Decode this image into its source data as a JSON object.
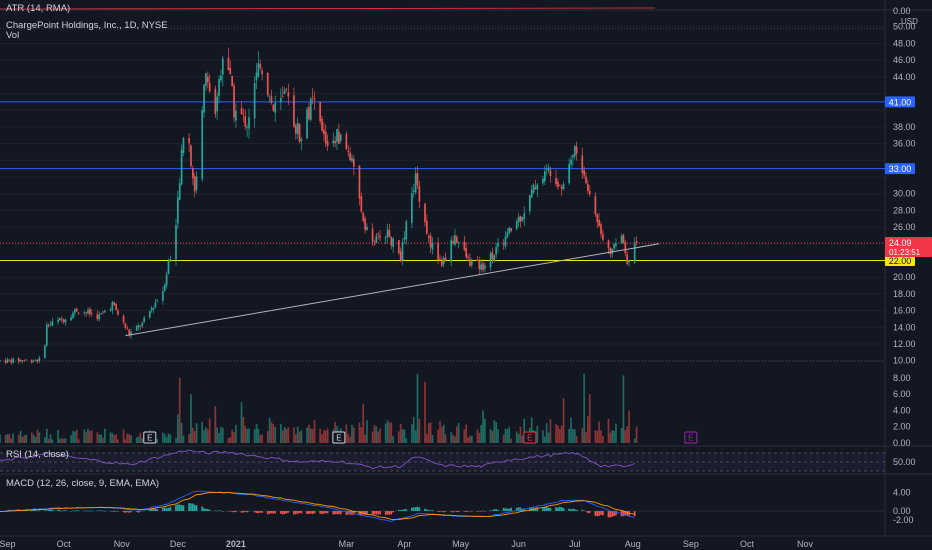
{
  "header": {
    "atr_label": "ATR (14, RMA)",
    "symbol_label": "ChargePoint Holdings, Inc., 1D, NYSE",
    "vol_label": "Vol",
    "rsi_label": "RSI (14, close)",
    "macd_label": "MACD (12, 26, close, 9, EMA, EMA)",
    "currency": "USD"
  },
  "chart_data": {
    "type": "candlestick",
    "price_axis_ticks": [
      "10.00",
      "12.00",
      "14.00",
      "16.00",
      "18.00",
      "20.00",
      "22.00",
      "24.00",
      "26.00",
      "28.00",
      "30.00",
      "32.00",
      "34.00",
      "36.00",
      "38.00",
      "40.00",
      "42.00",
      "44.00",
      "46.00",
      "48.00",
      "50.00"
    ],
    "volume_axis_ticks": [
      "0.00",
      "2.00",
      "4.00",
      "6.00",
      "8.00"
    ],
    "atr_axis_ticks": [
      "0.00"
    ],
    "rsi_axis_ticks": [
      "50.00"
    ],
    "macd_axis_ticks": [
      "4.00",
      "0.00",
      "-2.00"
    ],
    "x_axis_labels": [
      "Sep",
      "Oct",
      "Nov",
      "Dec",
      "2021",
      "Mar",
      "Apr",
      "May",
      "Jun",
      "Jul",
      "Aug",
      "Sep",
      "Oct",
      "Nov"
    ],
    "horizontal_levels": [
      {
        "value": 41.0,
        "label": "41.00",
        "color": "#2962ff"
      },
      {
        "value": 33.0,
        "label": "33.00",
        "color": "#2962ff"
      },
      {
        "value": 22.0,
        "label": "22.00",
        "color": "#f5e50b"
      }
    ],
    "last_price": {
      "value": 24.09,
      "label": "24.09",
      "countdown": "01:23:51",
      "color": "#f23645"
    },
    "trendline": {
      "start": {
        "date": "2020-11-03",
        "price": 13.0
      },
      "end": {
        "date": "2021-08-15",
        "price": 24.0
      }
    },
    "earnings_markers": [
      {
        "date": "2020-11-16",
        "label": "E",
        "color": "#d1d4dc"
      },
      {
        "date": "2021-02-25",
        "label": "E",
        "color": "#d1d4dc"
      },
      {
        "date": "2021-06-07",
        "label": "E",
        "color": "#f23645"
      },
      {
        "date": "2021-09-01",
        "label": "E",
        "color": "#9c27b0"
      }
    ],
    "price_path": [
      [
        "2020-08-28",
        10.0
      ],
      [
        "2020-09-20",
        10.1
      ],
      [
        "2020-09-22",
        14.2
      ],
      [
        "2020-10-01",
        15.0
      ],
      [
        "2020-10-08",
        16.1
      ],
      [
        "2020-10-20",
        15.3
      ],
      [
        "2020-10-27",
        16.8
      ],
      [
        "2020-11-05",
        13.2
      ],
      [
        "2020-11-12",
        14.4
      ],
      [
        "2020-11-23",
        18.5
      ],
      [
        "2020-11-30",
        26.0
      ],
      [
        "2020-12-05",
        40.0
      ],
      [
        "2020-12-10",
        30.0
      ],
      [
        "2020-12-16",
        45.0
      ],
      [
        "2020-12-20",
        38.5
      ],
      [
        "2020-12-26",
        48.5
      ],
      [
        "2020-12-31",
        40.0
      ],
      [
        "2021-01-07",
        38.5
      ],
      [
        "2021-01-14",
        46.0
      ],
      [
        "2021-01-21",
        40.0
      ],
      [
        "2021-01-28",
        41.5
      ],
      [
        "2021-02-04",
        37.0
      ],
      [
        "2021-02-11",
        41.0
      ],
      [
        "2021-02-18",
        36.0
      ],
      [
        "2021-02-25",
        37.0
      ],
      [
        "2021-03-03",
        34.5
      ],
      [
        "2021-03-10",
        27.0
      ],
      [
        "2021-03-15",
        24.0
      ],
      [
        "2021-03-22",
        25.5
      ],
      [
        "2021-03-30",
        22.5
      ],
      [
        "2021-04-07",
        32.0
      ],
      [
        "2021-04-14",
        24.5
      ],
      [
        "2021-04-21",
        21.5
      ],
      [
        "2021-04-28",
        25.0
      ],
      [
        "2021-05-05",
        22.0
      ],
      [
        "2021-05-12",
        21.2
      ],
      [
        "2021-05-19",
        23.0
      ],
      [
        "2021-05-26",
        25.0
      ],
      [
        "2021-06-04",
        28.0
      ],
      [
        "2021-06-11",
        31.5
      ],
      [
        "2021-06-18",
        33.0
      ],
      [
        "2021-06-24",
        31.0
      ],
      [
        "2021-07-01",
        35.5
      ],
      [
        "2021-07-08",
        30.5
      ],
      [
        "2021-07-15",
        25.5
      ],
      [
        "2021-07-21",
        23.0
      ],
      [
        "2021-07-26",
        25.0
      ],
      [
        "2021-07-29",
        22.2
      ],
      [
        "2021-08-03",
        24.09
      ]
    ],
    "volume_spikes": [
      [
        "2020-12-01",
        3.5
      ],
      [
        "2020-12-02",
        8.0
      ],
      [
        "2020-12-08",
        6.0
      ],
      [
        "2020-12-21",
        4.5
      ],
      [
        "2021-01-04",
        5.0
      ],
      [
        "2021-03-10",
        4.8
      ],
      [
        "2021-04-08",
        8.5
      ],
      [
        "2021-04-12",
        7.5
      ],
      [
        "2021-05-13",
        4.0
      ],
      [
        "2021-06-25",
        5.5
      ],
      [
        "2021-07-06",
        8.5
      ],
      [
        "2021-07-09",
        6.0
      ],
      [
        "2021-07-27",
        8.3
      ],
      [
        "2021-07-30",
        4.0
      ]
    ],
    "rsi_path": [
      [
        "2020-08-28",
        52
      ],
      [
        "2020-09-22",
        68
      ],
      [
        "2020-10-15",
        55
      ],
      [
        "2020-11-05",
        44
      ],
      [
        "2020-11-20",
        60
      ],
      [
        "2020-12-05",
        76
      ],
      [
        "2020-12-16",
        70
      ],
      [
        "2020-12-28",
        72
      ],
      [
        "2021-01-14",
        62
      ],
      [
        "2021-02-04",
        50
      ],
      [
        "2021-02-25",
        52
      ],
      [
        "2021-03-15",
        38
      ],
      [
        "2021-03-30",
        40
      ],
      [
        "2021-04-07",
        62
      ],
      [
        "2021-04-21",
        42
      ],
      [
        "2021-05-12",
        40
      ],
      [
        "2021-05-26",
        55
      ],
      [
        "2021-06-18",
        65
      ],
      [
        "2021-07-01",
        70
      ],
      [
        "2021-07-15",
        42
      ],
      [
        "2021-07-29",
        40
      ],
      [
        "2021-08-03",
        46
      ]
    ],
    "macd_path": [
      [
        "2020-08-28",
        0.0
      ],
      [
        "2020-09-25",
        0.6
      ],
      [
        "2020-10-20",
        0.8
      ],
      [
        "2020-11-10",
        0.2
      ],
      [
        "2020-11-25",
        1.5
      ],
      [
        "2020-12-10",
        4.3
      ],
      [
        "2020-12-25",
        4.0
      ],
      [
        "2021-01-10",
        3.5
      ],
      [
        "2021-01-28",
        2.2
      ],
      [
        "2021-02-18",
        0.8
      ],
      [
        "2021-03-10",
        -1.0
      ],
      [
        "2021-03-25",
        -2.2
      ],
      [
        "2021-04-10",
        -0.4
      ],
      [
        "2021-04-25",
        -1.1
      ],
      [
        "2021-05-15",
        -1.2
      ],
      [
        "2021-06-05",
        0.5
      ],
      [
        "2021-06-25",
        2.3
      ],
      [
        "2021-07-05",
        2.4
      ],
      [
        "2021-07-20",
        0.0
      ],
      [
        "2021-08-03",
        -1.5
      ]
    ]
  }
}
